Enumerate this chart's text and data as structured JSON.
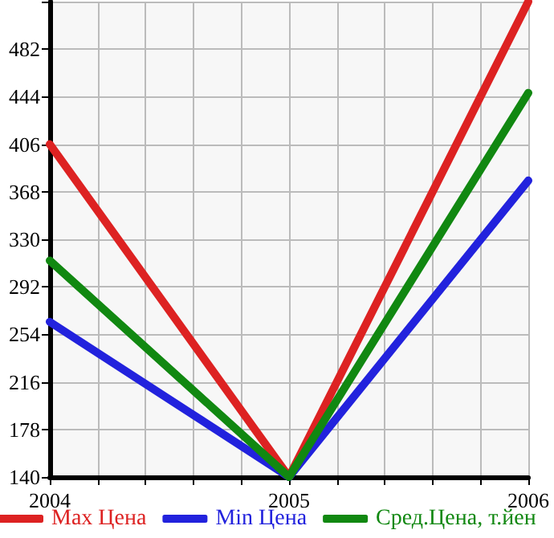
{
  "chart_data": {
    "type": "line",
    "x": [
      2004,
      2005,
      2006
    ],
    "series": [
      {
        "name": "Max Цена",
        "color": "#dd2222",
        "values": [
          406,
          140,
          520
        ]
      },
      {
        "name": "Min Цена",
        "color": "#2222dd",
        "values": [
          264,
          140,
          377
        ]
      },
      {
        "name": "Сред.Цена, т.йен",
        "color": "#118811",
        "values": [
          313,
          140,
          447
        ]
      }
    ],
    "xlim": [
      2004,
      2006
    ],
    "xticks": [
      2004,
      {
        "value": 2004.2,
        "label": null
      },
      {
        "value": 2004.4,
        "label": null
      },
      {
        "value": 2004.6,
        "label": null
      },
      {
        "value": 2004.8,
        "label": null
      },
      2005,
      {
        "value": 2005.2,
        "label": null
      },
      {
        "value": 2005.4,
        "label": null
      },
      {
        "value": 2005.6,
        "label": null
      },
      {
        "value": 2005.8,
        "label": null
      },
      2006
    ],
    "ylim": [
      140,
      520
    ],
    "yticks": [
      140,
      178,
      216,
      254,
      292,
      330,
      368,
      406,
      444,
      482,
      {
        "value": 520,
        "label": null
      }
    ],
    "grid": true,
    "legend": "bottom",
    "marker": "none",
    "line_style": "solid"
  }
}
